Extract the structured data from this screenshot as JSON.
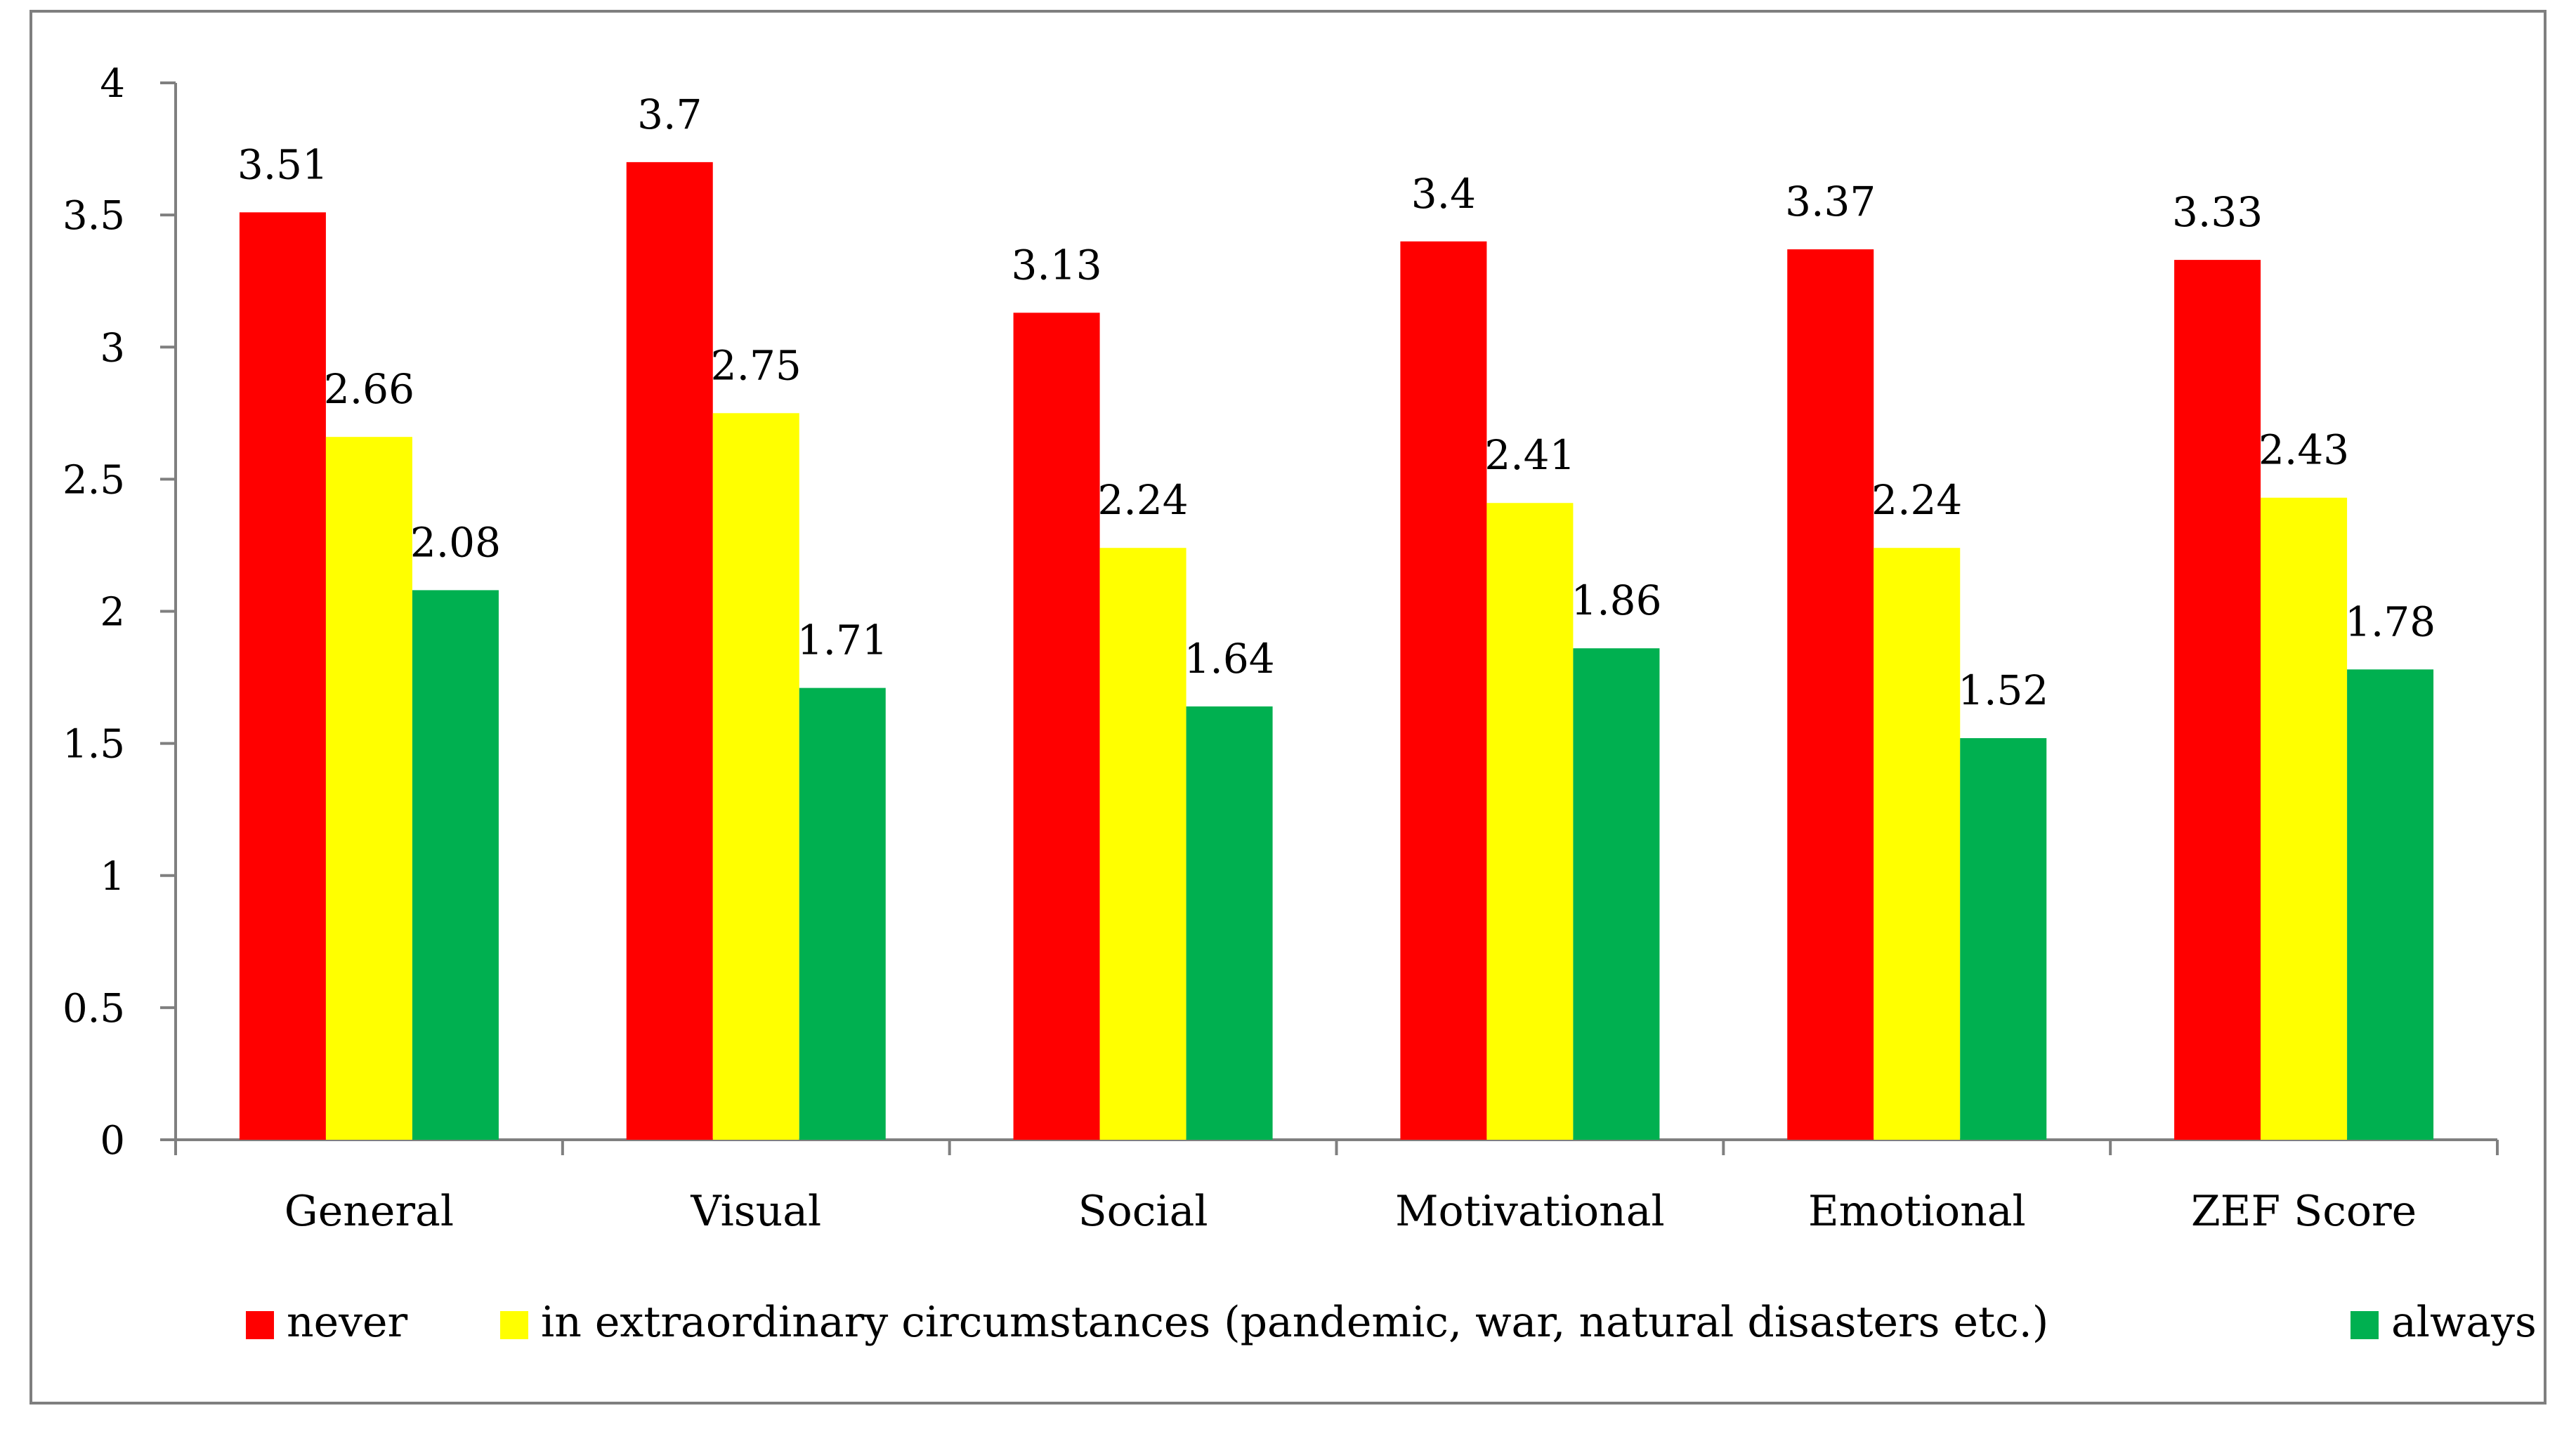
{
  "chart_data": {
    "type": "bar",
    "title": "",
    "xlabel": "",
    "ylabel": "",
    "ylim": [
      0,
      4
    ],
    "yticks": [
      "0",
      "0.5",
      "1",
      "1.5",
      "2",
      "2.5",
      "3",
      "3.5",
      "4"
    ],
    "ytick_values": [
      0,
      0.5,
      1,
      1.5,
      2,
      2.5,
      3,
      3.5,
      4
    ],
    "grid": false,
    "legend_position": "bottom",
    "categories": [
      "General",
      "Visual",
      "Social",
      "Motivational",
      "Emotional",
      "ZEF Score"
    ],
    "series": [
      {
        "name": "never",
        "color": "#ff0000",
        "values": [
          3.51,
          3.7,
          3.13,
          3.4,
          3.37,
          3.33
        ],
        "labels": [
          "3.51",
          "3.7",
          "3.13",
          "3.4",
          "3.37",
          "3.33"
        ]
      },
      {
        "name": "in extraordinary circumstances (pandemic, war, natural disasters etc.)",
        "color": "#ffff00",
        "values": [
          2.66,
          2.75,
          2.24,
          2.41,
          2.24,
          2.43
        ],
        "labels": [
          "2.66",
          "2.75",
          "2.24",
          "2.41",
          "2.24",
          "2.43"
        ]
      },
      {
        "name": "always",
        "color": "#00b050",
        "values": [
          2.08,
          1.71,
          1.64,
          1.86,
          1.52,
          1.78
        ],
        "labels": [
          "2.08",
          "1.71",
          "1.64",
          "1.86",
          "1.52",
          "1.78"
        ]
      }
    ],
    "axis_color": "#7f7f7f",
    "frame_color": "#7f7f7f"
  }
}
